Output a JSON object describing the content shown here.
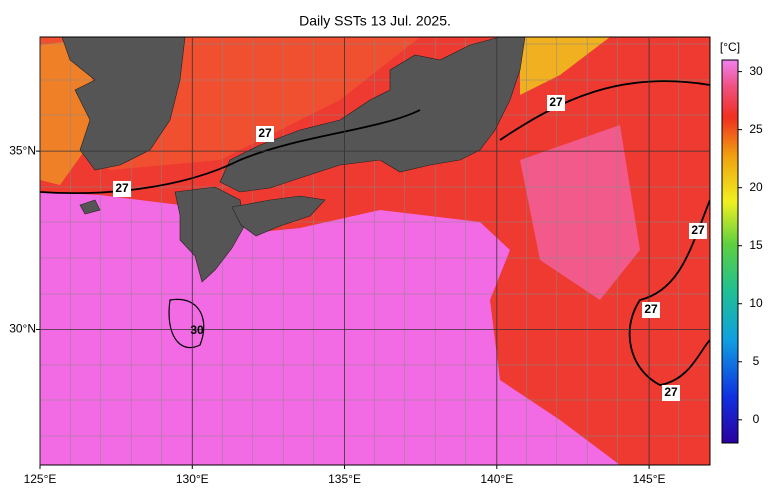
{
  "title": "Daily SSTs 13 Jul. 2025.",
  "map": {
    "xlim": [
      125,
      147
    ],
    "ylim": [
      26.2,
      38.2
    ],
    "xticks": [
      {
        "value": 125,
        "label": "125°E"
      },
      {
        "value": 130,
        "label": "130°E"
      },
      {
        "value": 135,
        "label": "135°E"
      },
      {
        "value": 140,
        "label": "140°E"
      },
      {
        "value": 145,
        "label": "145°E"
      }
    ],
    "yticks": [
      {
        "value": 30,
        "label": "30°N"
      },
      {
        "value": 35,
        "label": "35°N"
      }
    ],
    "contour_labels": [
      27,
      27,
      27,
      27,
      27,
      27,
      30
    ]
  },
  "colorbar": {
    "label": "[°C]",
    "lim": [
      -2,
      31
    ],
    "ticks": [
      0,
      5,
      10,
      15,
      20,
      25,
      30
    ]
  }
}
